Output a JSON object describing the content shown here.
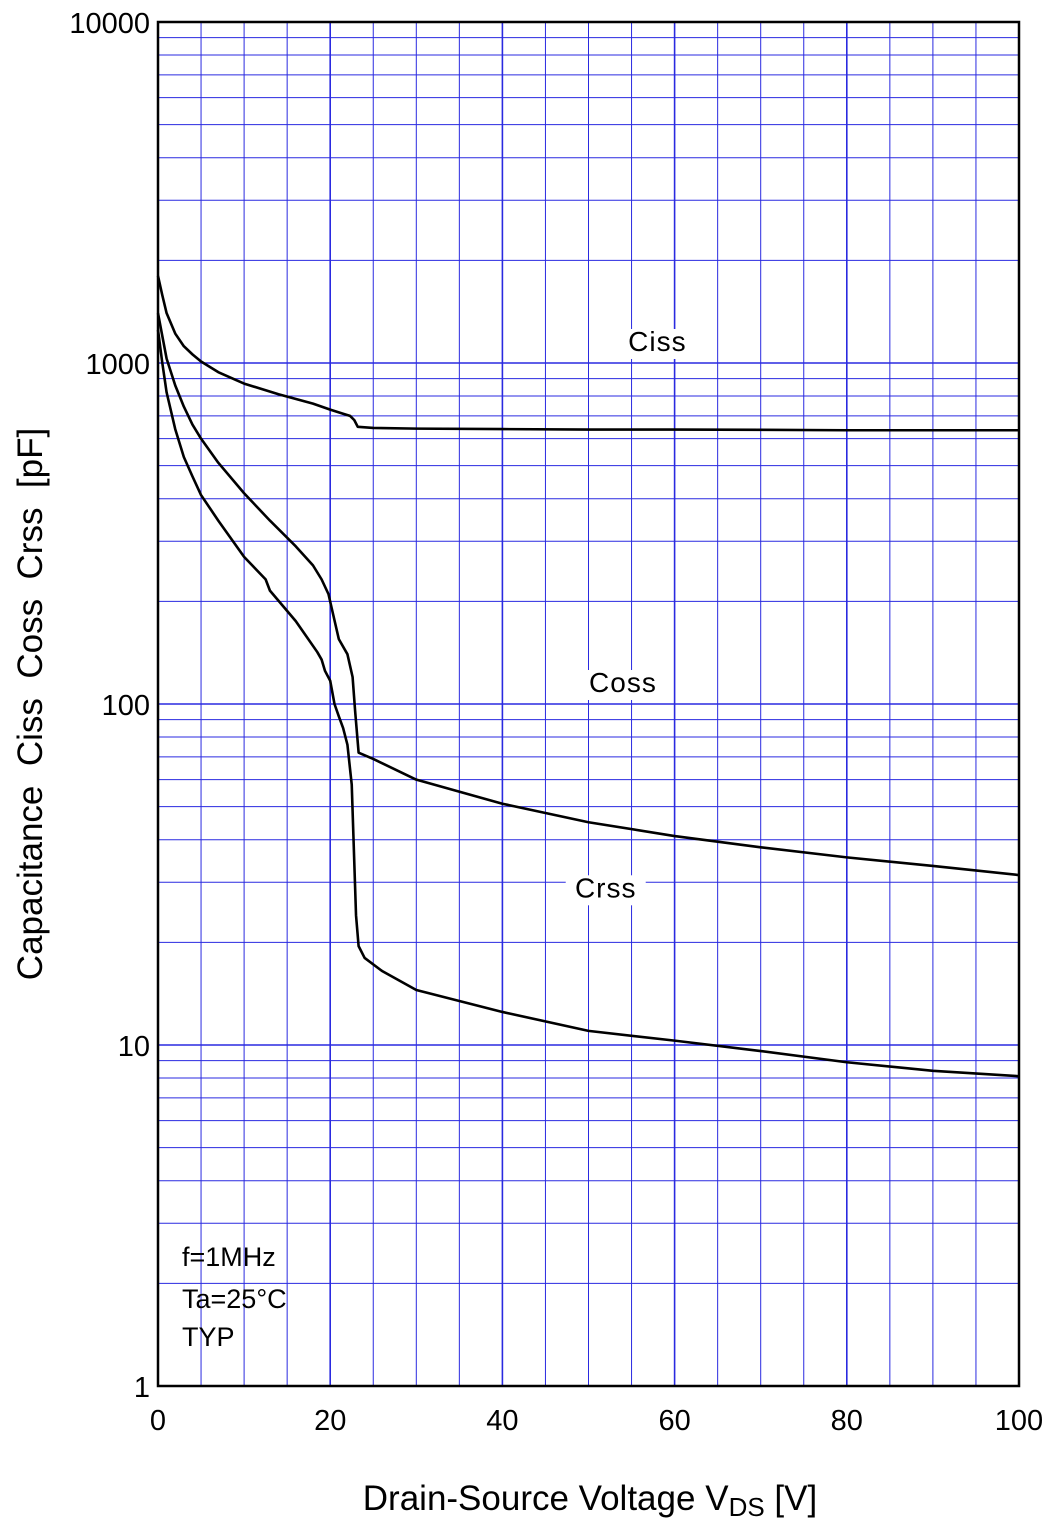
{
  "chart_data": {
    "type": "line",
    "xlabel": "Drain-Source Voltage",
    "xlabel_symbol": "V",
    "xlabel_subscript": "DS",
    "xlabel_unit": "[V]",
    "ylabel": "Capacitance  Ciss  Coss  Crss  [pF]",
    "x_scale": "linear",
    "y_scale": "log",
    "xlim": [
      0,
      100
    ],
    "ylim": [
      1,
      10000
    ],
    "x_ticks": [
      0,
      20,
      40,
      60,
      80,
      100
    ],
    "x_tick_labels": [
      "0",
      "20",
      "40",
      "60",
      "80",
      "100"
    ],
    "y_ticks": [
      1,
      10,
      100,
      1000,
      10000
    ],
    "y_tick_labels": [
      "1",
      "10",
      "100",
      "1000",
      "10000"
    ],
    "grid": true,
    "grid_color": "#2a2ae0",
    "line_color": "#000000",
    "series": [
      {
        "name": "Ciss",
        "x": [
          0,
          0.5,
          1,
          2,
          3,
          4,
          5,
          7,
          10,
          14,
          18,
          20,
          21.5,
          22.3,
          22.8,
          23.2,
          25,
          30,
          40,
          50,
          60,
          70,
          80,
          90,
          100
        ],
        "y": [
          1800,
          1580,
          1400,
          1220,
          1120,
          1060,
          1010,
          940,
          870,
          810,
          760,
          730,
          710,
          700,
          680,
          650,
          645,
          642,
          640,
          638,
          638,
          637,
          635,
          635,
          635
        ]
      },
      {
        "name": "Coss",
        "x": [
          0,
          0.5,
          1,
          2,
          3,
          4,
          5,
          7,
          10,
          13,
          16,
          18,
          19,
          19.8,
          20.3,
          21,
          22,
          22.6,
          22.9,
          23.3,
          25,
          30,
          40,
          50,
          60,
          70,
          80,
          90,
          100
        ],
        "y": [
          1400,
          1200,
          1030,
          860,
          745,
          660,
          600,
          510,
          415,
          345,
          290,
          255,
          232,
          210,
          185,
          155,
          140,
          120,
          95,
          72,
          69,
          60,
          51,
          45,
          41,
          38,
          35.5,
          33.5,
          31.5
        ]
      },
      {
        "name": "Crss",
        "x": [
          0,
          0.5,
          1,
          2,
          3,
          4,
          5,
          7,
          10,
          12.5,
          13,
          16,
          18.5,
          19,
          19.4,
          20,
          20.5,
          21,
          21.5,
          22,
          22.5,
          23,
          23.3,
          24,
          26,
          30,
          40,
          50,
          60,
          70,
          80,
          90,
          100
        ],
        "y": [
          1250,
          1000,
          820,
          640,
          530,
          465,
          410,
          345,
          270,
          232,
          215,
          175,
          142,
          135,
          125,
          117,
          100,
          92,
          85,
          76,
          58,
          24,
          19.5,
          18,
          16.5,
          14.5,
          12.5,
          11,
          10.3,
          9.6,
          8.9,
          8.4,
          8.1
        ]
      }
    ],
    "annotations": [
      "f=1MHz",
      "Ta=25°C",
      "TYP"
    ]
  }
}
